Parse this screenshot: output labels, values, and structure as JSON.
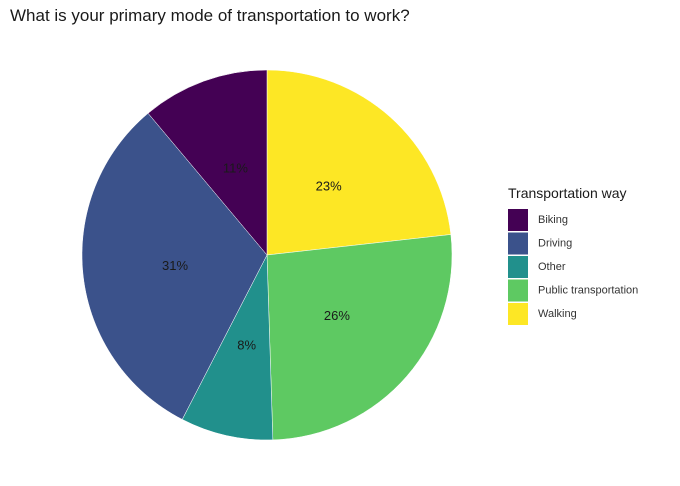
{
  "chart_data": {
    "type": "pie",
    "title": "What is your primary mode of transportation to work?",
    "legend_title": "Transportation way",
    "legend_position": "right",
    "start_angle_deg": 0,
    "direction": "clockwise",
    "slices": [
      {
        "label": "Walking",
        "value": 23,
        "display": "23%",
        "color": "#FDE725"
      },
      {
        "label": "Public transportation",
        "value": 26,
        "display": "26%",
        "color": "#5EC962"
      },
      {
        "label": "Other",
        "value": 8,
        "display": "8%",
        "color": "#21908C"
      },
      {
        "label": "Driving",
        "value": 31,
        "display": "31%",
        "color": "#3B528B"
      },
      {
        "label": "Biking",
        "value": 11,
        "display": "11%",
        "color": "#440154"
      }
    ],
    "legend_order": [
      "Biking",
      "Driving",
      "Other",
      "Public transportation",
      "Walking"
    ]
  }
}
